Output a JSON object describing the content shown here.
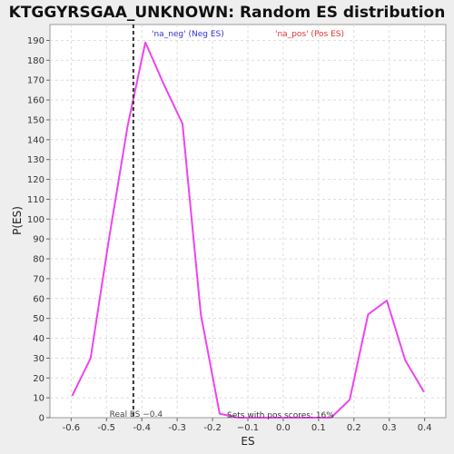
{
  "chart_data": {
    "type": "line",
    "title": "KTGGYRSGAA_UNKNOWN: Random ES distribution",
    "xlabel": "ES",
    "ylabel": "P(ES)",
    "xlim": [
      -0.66,
      0.46
    ],
    "ylim": [
      0,
      198
    ],
    "xticks": [
      -0.6,
      -0.5,
      -0.4,
      -0.3,
      -0.2,
      -0.1,
      0.0,
      0.1,
      0.2,
      0.3,
      0.4
    ],
    "xtick_labels": [
      "-0.6",
      "-0.5",
      "-0.4",
      "-0.3",
      "-0.2",
      "−0.1",
      "0.0",
      "0.1",
      "0.2",
      "0.3",
      "0.4"
    ],
    "yticks": [
      0,
      10,
      20,
      30,
      40,
      50,
      60,
      70,
      80,
      90,
      100,
      110,
      120,
      130,
      140,
      150,
      160,
      170,
      180,
      190
    ],
    "grid": true,
    "series": [
      {
        "name": "distribution",
        "color": "#ee44ee",
        "x": [
          -0.597,
          -0.545,
          -0.493,
          -0.44,
          -0.39,
          -0.338,
          -0.285,
          -0.233,
          -0.18,
          -0.128,
          -0.075,
          -0.023,
          0.03,
          0.082,
          0.135,
          0.188,
          0.24,
          0.293,
          0.345,
          0.398
        ],
        "y": [
          11,
          30,
          90,
          147,
          189,
          168,
          148,
          52,
          2,
          0,
          0,
          0,
          0,
          0,
          0,
          9,
          52,
          59,
          29,
          13
        ]
      }
    ],
    "real_es": -0.424,
    "real_es_label": "Real ES −0.4",
    "legend": [
      {
        "label": "'na_neg' (Neg ES)",
        "color": "#3333cc"
      },
      {
        "label": "'na_pos' (Pos ES)",
        "color": "#dd3333"
      }
    ],
    "annotation": "Sets with pos scores: 16%"
  }
}
